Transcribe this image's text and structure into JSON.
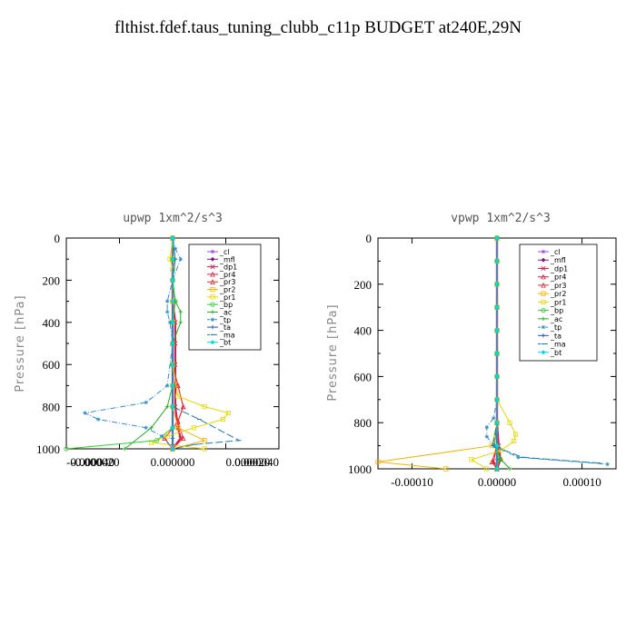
{
  "page_title": "flthist.fdef.taus_tuning_clubb_c11p  BUDGET at240E,29N",
  "legend_labels": [
    "_cl",
    "_mfl",
    "_dp1",
    "_pr4",
    "_pr3",
    "_pr2",
    "_pr1",
    "_bp",
    "_ac",
    "_tp",
    "_ta",
    "_ma",
    "_bt"
  ],
  "series_colors": [
    "#9a4ecf",
    "#7a1a8a",
    "#d41f4a",
    "#e0203a",
    "#e03030",
    "#f4b400",
    "#e6d800",
    "#33cc33",
    "#20b020",
    "#2f8fc8",
    "#1f4fd0",
    "#1a7ab0",
    "#00d8f0"
  ],
  "chart_data": [
    {
      "type": "line",
      "title": "upwp   1xm^2/s^3",
      "xlabel": "",
      "ylabel": "Pressure [hPa]",
      "xlim": [
        -4e-05,
        4e-05
      ],
      "ylim": [
        1000,
        0
      ],
      "y_inverted": true,
      "x_tick_labels": [
        "-0.000040",
        "-0.000020",
        "0.000000",
        "0.000020",
        "0.000040"
      ],
      "y_tick_labels": [
        "0",
        "200",
        "400",
        "600",
        "800",
        "1000"
      ],
      "legend_position": "top-right",
      "series": [
        {
          "name": "_cl",
          "x": [
            0,
            0,
            0,
            0,
            0,
            0,
            0,
            0,
            0,
            0,
            0
          ],
          "y": [
            0,
            100,
            200,
            300,
            400,
            500,
            600,
            700,
            800,
            900,
            1000
          ]
        },
        {
          "name": "_mfl",
          "x": [
            0,
            0,
            0,
            0,
            0,
            0,
            0,
            0,
            0,
            0,
            0
          ],
          "y": [
            0,
            100,
            200,
            300,
            400,
            500,
            600,
            700,
            800,
            900,
            1000
          ]
        },
        {
          "name": "_dp1",
          "x": [
            0,
            0,
            0,
            0,
            1e-06,
            1e-06,
            1e-06,
            1e-06,
            1e-06,
            2e-06,
            3e-06,
            0
          ],
          "y": [
            0,
            100,
            200,
            300,
            400,
            500,
            600,
            700,
            800,
            900,
            950,
            1000
          ]
        },
        {
          "name": "_pr4",
          "x": [
            0,
            0,
            0,
            0,
            0,
            0,
            0,
            2e-06,
            4e-06,
            2e-06,
            -3e-06,
            0
          ],
          "y": [
            0,
            100,
            200,
            300,
            400,
            500,
            600,
            700,
            800,
            870,
            950,
            1000
          ]
        },
        {
          "name": "_pr3",
          "x": [
            0,
            0,
            0,
            0,
            0,
            0,
            0,
            2e-06,
            4e-06,
            2e-06,
            4e-06,
            0
          ],
          "y": [
            0,
            100,
            200,
            300,
            400,
            500,
            600,
            700,
            800,
            870,
            950,
            1000
          ]
        },
        {
          "name": "_pr2",
          "x": [
            0,
            0,
            0,
            0,
            0,
            0,
            0,
            0,
            0,
            2e-06,
            1.2e-05,
            0
          ],
          "y": [
            0,
            100,
            200,
            300,
            400,
            500,
            600,
            700,
            800,
            900,
            960,
            1000
          ]
        },
        {
          "name": "_pr1",
          "x": [
            0,
            -1e-06,
            0,
            0,
            0,
            0,
            0,
            2e-06,
            1.2e-05,
            2.1e-05,
            1.9e-05,
            8e-06,
            -2e-06,
            -8e-06,
            1.2e-05
          ],
          "y": [
            0,
            100,
            150,
            200,
            300,
            400,
            600,
            750,
            800,
            830,
            860,
            900,
            940,
            970,
            1000
          ]
        },
        {
          "name": "_bp",
          "x": [
            0,
            0,
            0,
            1e-06,
            0,
            0,
            0,
            0,
            0,
            0,
            -6e-06,
            -4e-05
          ],
          "y": [
            0,
            100,
            200,
            300,
            400,
            500,
            600,
            700,
            800,
            900,
            960,
            1000
          ]
        },
        {
          "name": "_ac",
          "x": [
            0,
            1e-06,
            0,
            1e-06,
            3e-06,
            3e-06,
            0,
            0,
            0,
            -2e-06,
            -8e-06,
            -1.8e-05
          ],
          "y": [
            0,
            100,
            200,
            300,
            350,
            400,
            500,
            600,
            700,
            800,
            900,
            1000
          ]
        },
        {
          "name": "_tp",
          "x": [
            0,
            1e-06,
            3e-06,
            0,
            -2e-06,
            -2e-06,
            -1e-06,
            0,
            -2e-06,
            -1e-05,
            -3.3e-05,
            -2.8e-05,
            -1e-05,
            -4e-06,
            0
          ],
          "y": [
            0,
            50,
            100,
            200,
            300,
            350,
            400,
            500,
            700,
            780,
            830,
            860,
            900,
            940,
            1000
          ]
        },
        {
          "name": "_ta",
          "x": [
            0,
            0,
            0,
            0,
            0,
            0,
            0,
            0,
            0,
            0,
            0,
            0,
            0
          ],
          "y": [
            0,
            100,
            200,
            300,
            400,
            500,
            600,
            700,
            800,
            900,
            950,
            980,
            1000
          ]
        },
        {
          "name": "_ma",
          "x": [
            0,
            1e-06,
            0,
            0,
            0,
            0,
            0,
            0,
            0,
            1e-05,
            2.5e-05,
            8e-06,
            0
          ],
          "y": [
            0,
            100,
            200,
            300,
            400,
            500,
            600,
            700,
            800,
            860,
            960,
            980,
            1000
          ]
        },
        {
          "name": "_bt",
          "x": [
            0,
            0,
            0,
            0,
            0,
            0,
            0,
            0,
            0,
            0,
            0
          ],
          "y": [
            0,
            100,
            200,
            300,
            400,
            500,
            600,
            700,
            800,
            900,
            1000
          ]
        }
      ]
    },
    {
      "type": "line",
      "title": "vpwp   1xm^2/s^3",
      "xlabel": "",
      "ylabel": "Pressure [hPa]",
      "xlim": [
        -0.00014,
        0.00014
      ],
      "ylim": [
        1000,
        0
      ],
      "y_inverted": true,
      "x_tick_labels": [
        "-0.00010",
        "0.00000",
        "0.00010"
      ],
      "y_tick_labels": [
        "0",
        "200",
        "400",
        "600",
        "800",
        "1000"
      ],
      "legend_position": "top-right",
      "series": [
        {
          "name": "_cl",
          "x": [
            0,
            0,
            0,
            0,
            0,
            0,
            0,
            0,
            0,
            0,
            0
          ],
          "y": [
            0,
            100,
            200,
            300,
            400,
            500,
            600,
            700,
            800,
            900,
            1000
          ]
        },
        {
          "name": "_mfl",
          "x": [
            0,
            0,
            0,
            0,
            0,
            0,
            0,
            0,
            0,
            0,
            0
          ],
          "y": [
            0,
            100,
            200,
            300,
            400,
            500,
            600,
            700,
            800,
            900,
            1000
          ]
        },
        {
          "name": "_dp1",
          "x": [
            0,
            0,
            0,
            0,
            0,
            0,
            0,
            0,
            0,
            2e-06,
            4e-06,
            0
          ],
          "y": [
            0,
            100,
            200,
            300,
            400,
            500,
            600,
            700,
            800,
            900,
            960,
            1000
          ]
        },
        {
          "name": "_pr4",
          "x": [
            0,
            0,
            0,
            0,
            0,
            0,
            0,
            0,
            0,
            0,
            -4e-06,
            0
          ],
          "y": [
            0,
            100,
            200,
            300,
            400,
            500,
            600,
            700,
            800,
            900,
            970,
            1000
          ]
        },
        {
          "name": "_pr3",
          "x": [
            0,
            0,
            0,
            0,
            0,
            0,
            0,
            0,
            0,
            0,
            -6e-06,
            0
          ],
          "y": [
            0,
            100,
            200,
            300,
            400,
            500,
            600,
            700,
            800,
            900,
            970,
            1000
          ]
        },
        {
          "name": "_pr2",
          "x": [
            0,
            0,
            0,
            0,
            0,
            0,
            0,
            0,
            0,
            -6e-06,
            -0.00014,
            -6e-05
          ],
          "y": [
            0,
            100,
            200,
            300,
            400,
            500,
            600,
            700,
            800,
            900,
            970,
            1000
          ]
        },
        {
          "name": "_pr1",
          "x": [
            0,
            0,
            0,
            0,
            0,
            0,
            0,
            0,
            1.5e-05,
            2.2e-05,
            2e-05,
            5e-06,
            -3e-05,
            -1.2e-05
          ],
          "y": [
            0,
            100,
            200,
            300,
            400,
            500,
            600,
            700,
            800,
            850,
            880,
            920,
            960,
            1000
          ]
        },
        {
          "name": "_bp",
          "x": [
            0,
            0,
            0,
            0,
            0,
            0,
            0,
            0,
            0,
            0,
            2e-06,
            0
          ],
          "y": [
            0,
            100,
            200,
            300,
            400,
            500,
            600,
            700,
            800,
            900,
            960,
            1000
          ]
        },
        {
          "name": "_ac",
          "x": [
            0,
            0,
            0,
            0,
            0,
            0,
            0,
            0,
            0,
            -3e-06,
            5e-06,
            1.5e-05
          ],
          "y": [
            0,
            100,
            200,
            300,
            400,
            500,
            600,
            700,
            800,
            900,
            960,
            1000
          ]
        },
        {
          "name": "_tp",
          "x": [
            0,
            0,
            0,
            0,
            0,
            0,
            0,
            0,
            -4e-06,
            -1.2e-05,
            -1.2e-05,
            -4e-06,
            2.5e-05,
            0.00013
          ],
          "y": [
            0,
            100,
            200,
            300,
            400,
            500,
            600,
            700,
            780,
            820,
            860,
            900,
            950,
            980
          ]
        },
        {
          "name": "_ta",
          "x": [
            0,
            0,
            0,
            0,
            0,
            0,
            0,
            0,
            0,
            0,
            0,
            0
          ],
          "y": [
            0,
            100,
            200,
            300,
            400,
            500,
            600,
            700,
            800,
            900,
            960,
            1000
          ]
        },
        {
          "name": "_ma",
          "x": [
            0,
            0,
            0,
            0,
            0,
            0,
            0,
            0,
            0,
            -5e-06,
            3e-05,
            0.00012
          ],
          "y": [
            0,
            100,
            200,
            300,
            400,
            500,
            600,
            700,
            800,
            900,
            950,
            975
          ]
        },
        {
          "name": "_bt",
          "x": [
            0,
            0,
            0,
            0,
            0,
            0,
            0,
            0,
            0,
            0,
            0
          ],
          "y": [
            0,
            100,
            200,
            300,
            400,
            500,
            600,
            700,
            800,
            900,
            1000
          ]
        }
      ]
    }
  ]
}
